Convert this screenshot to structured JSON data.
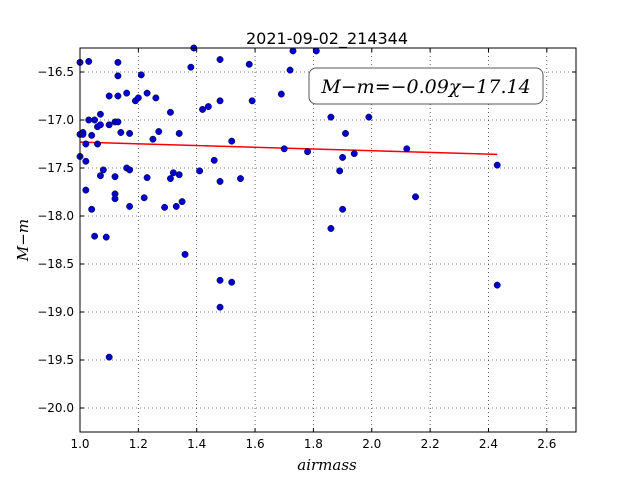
{
  "chart_data": {
    "type": "scatter",
    "title": "2021-09-02_214344",
    "xlabel": "airmass",
    "ylabel": "M−m",
    "xlim": [
      1.0,
      2.7
    ],
    "ylim": [
      -16.25,
      -20.25
    ],
    "y_inverted": true,
    "grid": true,
    "annotation": "M−m=−0.09χ−17.14",
    "xticks": [
      1.0,
      1.2,
      1.4,
      1.6,
      1.8,
      2.0,
      2.2,
      2.4,
      2.6
    ],
    "xtick_labels": [
      "1.0",
      "1.2",
      "1.4",
      "1.6",
      "1.8",
      "2.0",
      "2.2",
      "2.4",
      "2.6"
    ],
    "yticks": [
      -16.5,
      -17.0,
      -17.5,
      -18.0,
      -18.5,
      -19.0,
      -19.5,
      -20.0
    ],
    "ytick_labels": [
      "−16.5",
      "−17.0",
      "−17.5",
      "−18.0",
      "−18.5",
      "−19.0",
      "−19.5",
      "−20.0"
    ],
    "fit_line": {
      "slope": -0.09,
      "intercept": -17.14,
      "x_range": [
        1.0,
        2.43
      ],
      "color": "#ff0000"
    },
    "marker_color": "#0000cc",
    "points": [
      [
        1.0,
        -16.4
      ],
      [
        1.03,
        -16.39
      ],
      [
        1.0,
        -17.15
      ],
      [
        1.01,
        -17.13
      ],
      [
        1.01,
        -17.15
      ],
      [
        1.03,
        -17.0
      ],
      [
        1.05,
        -17.0
      ],
      [
        1.04,
        -17.16
      ],
      [
        1.02,
        -17.25
      ],
      [
        1.0,
        -17.38
      ],
      [
        1.02,
        -17.43
      ],
      [
        1.06,
        -17.07
      ],
      [
        1.07,
        -17.05
      ],
      [
        1.07,
        -16.94
      ],
      [
        1.06,
        -17.25
      ],
      [
        1.08,
        -17.52
      ],
      [
        1.07,
        -17.58
      ],
      [
        1.02,
        -17.73
      ],
      [
        1.04,
        -17.93
      ],
      [
        1.05,
        -18.21
      ],
      [
        1.09,
        -18.22
      ],
      [
        1.1,
        -16.75
      ],
      [
        1.1,
        -17.05
      ],
      [
        1.13,
        -16.75
      ],
      [
        1.13,
        -16.4
      ],
      [
        1.13,
        -16.54
      ],
      [
        1.12,
        -17.02
      ],
      [
        1.13,
        -17.02
      ],
      [
        1.14,
        -17.13
      ],
      [
        1.17,
        -17.14
      ],
      [
        1.12,
        -17.59
      ],
      [
        1.12,
        -17.77
      ],
      [
        1.12,
        -17.82
      ],
      [
        1.16,
        -17.5
      ],
      [
        1.17,
        -17.52
      ],
      [
        1.17,
        -17.9
      ],
      [
        1.1,
        -19.47
      ],
      [
        1.16,
        -16.72
      ],
      [
        1.19,
        -16.8
      ],
      [
        1.2,
        -16.77
      ],
      [
        1.21,
        -16.53
      ],
      [
        1.23,
        -16.72
      ],
      [
        1.26,
        -16.77
      ],
      [
        1.27,
        -17.12
      ],
      [
        1.25,
        -17.2
      ],
      [
        1.23,
        -17.6
      ],
      [
        1.22,
        -17.81
      ],
      [
        1.29,
        -17.91
      ],
      [
        1.31,
        -16.92
      ],
      [
        1.34,
        -17.14
      ],
      [
        1.31,
        -17.61
      ],
      [
        1.32,
        -17.55
      ],
      [
        1.34,
        -17.57
      ],
      [
        1.33,
        -17.9
      ],
      [
        1.35,
        -17.85
      ],
      [
        1.36,
        -18.4
      ],
      [
        1.38,
        -16.45
      ],
      [
        1.39,
        -16.25
      ],
      [
        1.42,
        -16.89
      ],
      [
        1.44,
        -16.86
      ],
      [
        1.48,
        -16.8
      ],
      [
        1.41,
        -17.53
      ],
      [
        1.46,
        -17.42
      ],
      [
        1.48,
        -17.64
      ],
      [
        1.48,
        -18.67
      ],
      [
        1.52,
        -18.69
      ],
      [
        1.48,
        -18.95
      ],
      [
        1.48,
        -16.37
      ],
      [
        1.52,
        -17.22
      ],
      [
        1.55,
        -17.61
      ],
      [
        1.58,
        -16.42
      ],
      [
        1.59,
        -16.8
      ],
      [
        1.69,
        -16.73
      ],
      [
        1.72,
        -16.48
      ],
      [
        1.73,
        -16.28
      ],
      [
        1.7,
        -17.3
      ],
      [
        1.78,
        -17.33
      ],
      [
        1.81,
        -16.28
      ],
      [
        1.86,
        -16.97
      ],
      [
        1.91,
        -17.14
      ],
      [
        1.9,
        -17.39
      ],
      [
        1.89,
        -17.53
      ],
      [
        1.94,
        -17.35
      ],
      [
        1.9,
        -17.93
      ],
      [
        1.86,
        -18.13
      ],
      [
        1.99,
        -16.97
      ],
      [
        2.12,
        -17.3
      ],
      [
        2.15,
        -17.8
      ],
      [
        2.43,
        -17.47
      ],
      [
        2.43,
        -18.72
      ]
    ]
  }
}
